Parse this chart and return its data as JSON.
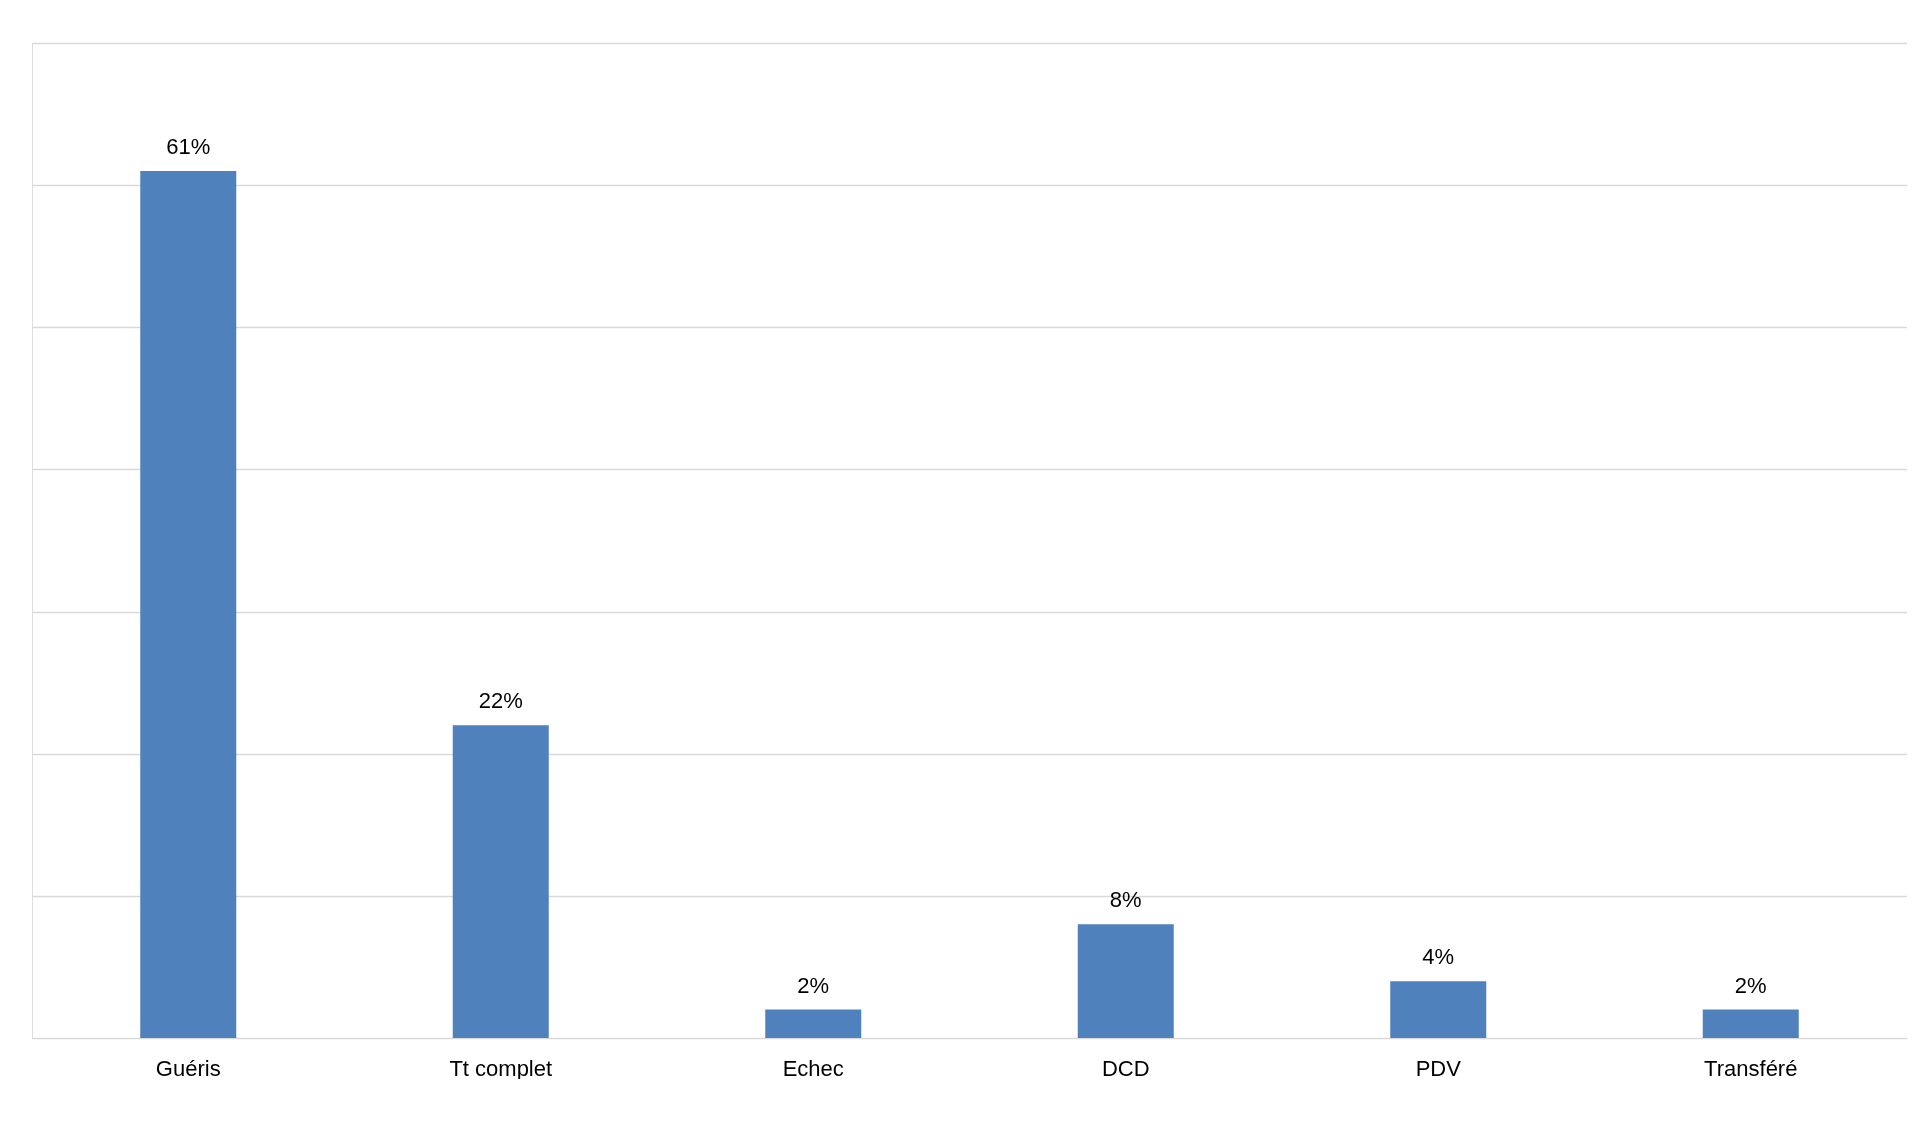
{
  "chart_data": {
    "type": "bar",
    "categories": [
      "Guéris",
      "Tt complet",
      "Echec",
      "DCD",
      "PDV",
      "Transféré"
    ],
    "values": [
      61,
      22,
      2,
      8,
      4,
      2
    ],
    "value_labels": [
      "61%",
      "22%",
      "2%",
      "8%",
      "4%",
      "2%"
    ],
    "color": "#4f81bd",
    "ylim": [
      0,
      70
    ],
    "yticks": [
      {
        "value": 0,
        "label": null
      },
      {
        "value": 10,
        "label": null
      },
      {
        "value": 20,
        "label": null
      },
      {
        "value": 30,
        "label": null
      },
      {
        "value": 40,
        "label": null
      },
      {
        "value": 50,
        "label": null
      },
      {
        "value": 60,
        "label": null
      },
      {
        "value": 70,
        "label": null
      }
    ],
    "grid": "y"
  }
}
